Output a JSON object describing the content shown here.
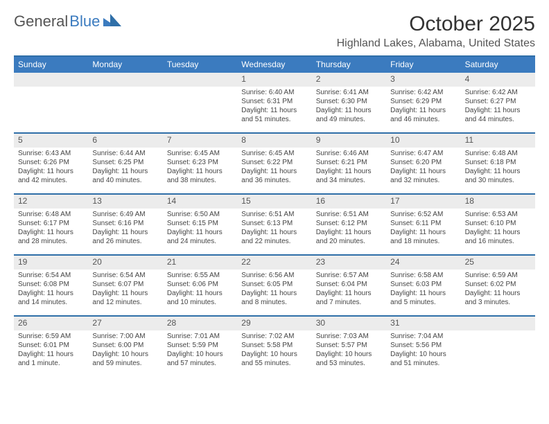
{
  "logo": {
    "word1": "General",
    "word2": "Blue"
  },
  "title": "October 2025",
  "location": "Highland Lakes, Alabama, United States",
  "colors": {
    "header_bg": "#3b7bbf",
    "header_text": "#ffffff",
    "rule": "#2f6fa8",
    "daynum_bg": "#ececec",
    "body_text": "#444444",
    "page_bg": "#ffffff"
  },
  "typography": {
    "title_fontsize": 30,
    "subtitle_fontsize": 16,
    "dow_fontsize": 12,
    "daynum_fontsize": 12,
    "body_fontsize": 10
  },
  "dows": [
    "Sunday",
    "Monday",
    "Tuesday",
    "Wednesday",
    "Thursday",
    "Friday",
    "Saturday"
  ],
  "weeks": [
    [
      {
        "n": "",
        "lines": []
      },
      {
        "n": "",
        "lines": []
      },
      {
        "n": "",
        "lines": []
      },
      {
        "n": "1",
        "lines": [
          "Sunrise: 6:40 AM",
          "Sunset: 6:31 PM",
          "Daylight: 11 hours",
          "and 51 minutes."
        ]
      },
      {
        "n": "2",
        "lines": [
          "Sunrise: 6:41 AM",
          "Sunset: 6:30 PM",
          "Daylight: 11 hours",
          "and 49 minutes."
        ]
      },
      {
        "n": "3",
        "lines": [
          "Sunrise: 6:42 AM",
          "Sunset: 6:29 PM",
          "Daylight: 11 hours",
          "and 46 minutes."
        ]
      },
      {
        "n": "4",
        "lines": [
          "Sunrise: 6:42 AM",
          "Sunset: 6:27 PM",
          "Daylight: 11 hours",
          "and 44 minutes."
        ]
      }
    ],
    [
      {
        "n": "5",
        "lines": [
          "Sunrise: 6:43 AM",
          "Sunset: 6:26 PM",
          "Daylight: 11 hours",
          "and 42 minutes."
        ]
      },
      {
        "n": "6",
        "lines": [
          "Sunrise: 6:44 AM",
          "Sunset: 6:25 PM",
          "Daylight: 11 hours",
          "and 40 minutes."
        ]
      },
      {
        "n": "7",
        "lines": [
          "Sunrise: 6:45 AM",
          "Sunset: 6:23 PM",
          "Daylight: 11 hours",
          "and 38 minutes."
        ]
      },
      {
        "n": "8",
        "lines": [
          "Sunrise: 6:45 AM",
          "Sunset: 6:22 PM",
          "Daylight: 11 hours",
          "and 36 minutes."
        ]
      },
      {
        "n": "9",
        "lines": [
          "Sunrise: 6:46 AM",
          "Sunset: 6:21 PM",
          "Daylight: 11 hours",
          "and 34 minutes."
        ]
      },
      {
        "n": "10",
        "lines": [
          "Sunrise: 6:47 AM",
          "Sunset: 6:20 PM",
          "Daylight: 11 hours",
          "and 32 minutes."
        ]
      },
      {
        "n": "11",
        "lines": [
          "Sunrise: 6:48 AM",
          "Sunset: 6:18 PM",
          "Daylight: 11 hours",
          "and 30 minutes."
        ]
      }
    ],
    [
      {
        "n": "12",
        "lines": [
          "Sunrise: 6:48 AM",
          "Sunset: 6:17 PM",
          "Daylight: 11 hours",
          "and 28 minutes."
        ]
      },
      {
        "n": "13",
        "lines": [
          "Sunrise: 6:49 AM",
          "Sunset: 6:16 PM",
          "Daylight: 11 hours",
          "and 26 minutes."
        ]
      },
      {
        "n": "14",
        "lines": [
          "Sunrise: 6:50 AM",
          "Sunset: 6:15 PM",
          "Daylight: 11 hours",
          "and 24 minutes."
        ]
      },
      {
        "n": "15",
        "lines": [
          "Sunrise: 6:51 AM",
          "Sunset: 6:13 PM",
          "Daylight: 11 hours",
          "and 22 minutes."
        ]
      },
      {
        "n": "16",
        "lines": [
          "Sunrise: 6:51 AM",
          "Sunset: 6:12 PM",
          "Daylight: 11 hours",
          "and 20 minutes."
        ]
      },
      {
        "n": "17",
        "lines": [
          "Sunrise: 6:52 AM",
          "Sunset: 6:11 PM",
          "Daylight: 11 hours",
          "and 18 minutes."
        ]
      },
      {
        "n": "18",
        "lines": [
          "Sunrise: 6:53 AM",
          "Sunset: 6:10 PM",
          "Daylight: 11 hours",
          "and 16 minutes."
        ]
      }
    ],
    [
      {
        "n": "19",
        "lines": [
          "Sunrise: 6:54 AM",
          "Sunset: 6:08 PM",
          "Daylight: 11 hours",
          "and 14 minutes."
        ]
      },
      {
        "n": "20",
        "lines": [
          "Sunrise: 6:54 AM",
          "Sunset: 6:07 PM",
          "Daylight: 11 hours",
          "and 12 minutes."
        ]
      },
      {
        "n": "21",
        "lines": [
          "Sunrise: 6:55 AM",
          "Sunset: 6:06 PM",
          "Daylight: 11 hours",
          "and 10 minutes."
        ]
      },
      {
        "n": "22",
        "lines": [
          "Sunrise: 6:56 AM",
          "Sunset: 6:05 PM",
          "Daylight: 11 hours",
          "and 8 minutes."
        ]
      },
      {
        "n": "23",
        "lines": [
          "Sunrise: 6:57 AM",
          "Sunset: 6:04 PM",
          "Daylight: 11 hours",
          "and 7 minutes."
        ]
      },
      {
        "n": "24",
        "lines": [
          "Sunrise: 6:58 AM",
          "Sunset: 6:03 PM",
          "Daylight: 11 hours",
          "and 5 minutes."
        ]
      },
      {
        "n": "25",
        "lines": [
          "Sunrise: 6:59 AM",
          "Sunset: 6:02 PM",
          "Daylight: 11 hours",
          "and 3 minutes."
        ]
      }
    ],
    [
      {
        "n": "26",
        "lines": [
          "Sunrise: 6:59 AM",
          "Sunset: 6:01 PM",
          "Daylight: 11 hours",
          "and 1 minute."
        ]
      },
      {
        "n": "27",
        "lines": [
          "Sunrise: 7:00 AM",
          "Sunset: 6:00 PM",
          "Daylight: 10 hours",
          "and 59 minutes."
        ]
      },
      {
        "n": "28",
        "lines": [
          "Sunrise: 7:01 AM",
          "Sunset: 5:59 PM",
          "Daylight: 10 hours",
          "and 57 minutes."
        ]
      },
      {
        "n": "29",
        "lines": [
          "Sunrise: 7:02 AM",
          "Sunset: 5:58 PM",
          "Daylight: 10 hours",
          "and 55 minutes."
        ]
      },
      {
        "n": "30",
        "lines": [
          "Sunrise: 7:03 AM",
          "Sunset: 5:57 PM",
          "Daylight: 10 hours",
          "and 53 minutes."
        ]
      },
      {
        "n": "31",
        "lines": [
          "Sunrise: 7:04 AM",
          "Sunset: 5:56 PM",
          "Daylight: 10 hours",
          "and 51 minutes."
        ]
      },
      {
        "n": "",
        "lines": []
      }
    ]
  ]
}
